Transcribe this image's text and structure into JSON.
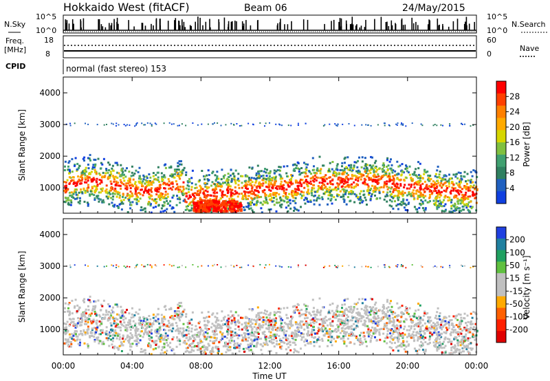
{
  "chart_data": {
    "type": "heatmap",
    "title": "Hokkaido West (fitACF)",
    "beam": "Beam 06",
    "date": "24/May/2015",
    "xlabel": "Time UT",
    "x_ticks": [
      "00:00",
      "04:00",
      "08:00",
      "12:00",
      "16:00",
      "20:00",
      "00:00"
    ],
    "x_range_hours": [
      0,
      24
    ],
    "header_panels": {
      "noise": {
        "left_label": "N.Sky",
        "right_label": "N.Search",
        "left_ticks": [
          "10^5",
          "10^0"
        ],
        "right_ticks": [
          "10^5",
          "10^0"
        ]
      },
      "frequency": {
        "left_label": "Freq.",
        "left_unit": "[MHz]",
        "left_ticks": [
          "18",
          "8"
        ],
        "right_label": "Nave",
        "right_ticks": [
          "60",
          "0"
        ]
      },
      "cpid": {
        "label": "CPID",
        "mode_text": "normal (fast stereo) 153"
      }
    },
    "panels": [
      {
        "name": "power",
        "ylabel": "Slant Range [km]",
        "ylim": [
          200,
          4500
        ],
        "y_ticks": [
          1000,
          2000,
          3000,
          4000
        ],
        "colorbar_label": "Power [dB]",
        "colorbar_ticks": [
          "28",
          "24",
          "20",
          "16",
          "12",
          "8",
          "4"
        ],
        "colors": [
          "#ff0000",
          "#ff4000",
          "#ff8000",
          "#ffaa00",
          "#d6d600",
          "#80c040",
          "#40a070",
          "#308060",
          "#2060c0",
          "#1040e0"
        ]
      },
      {
        "name": "velocity",
        "ylabel": "Slant Range [km]",
        "ylim": [
          200,
          4500
        ],
        "y_ticks": [
          1000,
          2000,
          3000,
          4000
        ],
        "colorbar_label": "Velocity [m s⁻¹]",
        "colorbar_ticks": [
          "200",
          "100",
          "50",
          "15",
          "-15",
          "-50",
          "-100",
          "-200"
        ],
        "colors": [
          "#2040e0",
          "#2080a0",
          "#20a060",
          "#60c040",
          "#c0c0c0",
          "#c0c0c0",
          "#ffaa00",
          "#ff6000",
          "#ff2000",
          "#e00000"
        ]
      }
    ]
  }
}
